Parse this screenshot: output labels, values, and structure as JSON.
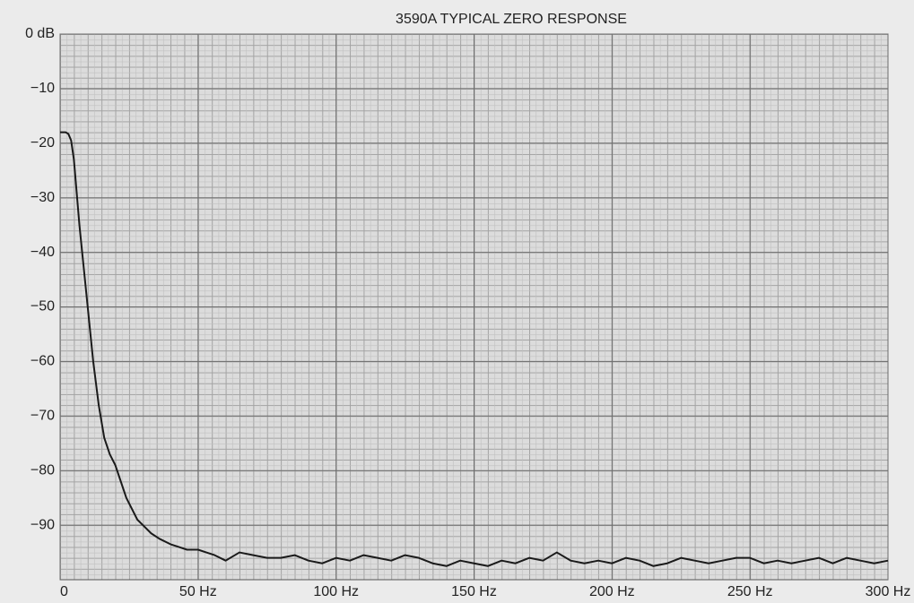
{
  "chart_data": {
    "type": "line",
    "title": "3590A  TYPICAL ZERO  RESPONSE",
    "x": [
      0,
      2,
      3,
      4,
      5,
      6,
      7,
      8,
      9,
      10,
      11,
      12,
      13,
      14,
      15,
      16,
      18,
      20,
      22,
      24,
      26,
      28,
      30,
      33,
      36,
      40,
      43,
      46,
      50,
      53,
      56,
      60,
      65,
      70,
      75,
      80,
      85,
      90,
      95,
      100,
      105,
      110,
      115,
      120,
      125,
      130,
      135,
      140,
      145,
      150,
      155,
      160,
      165,
      170,
      175,
      180,
      185,
      190,
      195,
      200,
      205,
      210,
      215,
      220,
      225,
      230,
      235,
      240,
      245,
      250,
      255,
      260,
      265,
      270,
      275,
      280,
      285,
      290,
      295,
      300
    ],
    "values": [
      -18,
      -18,
      -18.3,
      -19.5,
      -23,
      -29,
      -35,
      -40,
      -45,
      -50,
      -55,
      -60,
      -64,
      -68,
      -71,
      -74,
      -77,
      -79,
      -82,
      -85,
      -87,
      -89,
      -90,
      -91.5,
      -92.5,
      -93.5,
      -94,
      -94.5,
      -94.5,
      -95,
      -95.5,
      -96.5,
      -95,
      -95.5,
      -96,
      -96,
      -95.5,
      -96.5,
      -97,
      -96,
      -96.5,
      -95.5,
      -96,
      -96.5,
      -95.5,
      -96,
      -97,
      -97.5,
      -96.5,
      -97,
      -97.5,
      -96.5,
      -97,
      -96,
      -96.5,
      -95,
      -96.5,
      -97,
      -96.5,
      -97,
      -96,
      -96.5,
      -97.5,
      -97,
      -96,
      -96.5,
      -97,
      -96.5,
      -96,
      -96,
      -97,
      -96.5,
      -97,
      -96.5,
      -96,
      -97,
      -96,
      -96.5,
      -97,
      -96.5
    ],
    "color": "#1a1a1a",
    "xlim": [
      0,
      300
    ],
    "xticks": [
      {
        "value": 0,
        "label": "0"
      },
      {
        "value": 50,
        "label": "50 Hz"
      },
      {
        "value": 100,
        "label": "100 Hz"
      },
      {
        "value": 150,
        "label": "150 Hz"
      },
      {
        "value": 200,
        "label": "200 Hz"
      },
      {
        "value": 250,
        "label": "250 Hz"
      },
      {
        "value": 300,
        "label": "300 Hz"
      }
    ],
    "ylim": [
      -100,
      0
    ],
    "yticks": [
      {
        "value": 0,
        "label": "0 dB"
      },
      {
        "value": -10,
        "label": "−10"
      },
      {
        "value": -20,
        "label": "−20"
      },
      {
        "value": -30,
        "label": "−30"
      },
      {
        "value": -40,
        "label": "−40"
      },
      {
        "value": -50,
        "label": "−50"
      },
      {
        "value": -60,
        "label": "−60"
      },
      {
        "value": -70,
        "label": "−70"
      },
      {
        "value": -80,
        "label": "−80"
      },
      {
        "value": -90,
        "label": "−90"
      }
    ],
    "grid": true
  }
}
